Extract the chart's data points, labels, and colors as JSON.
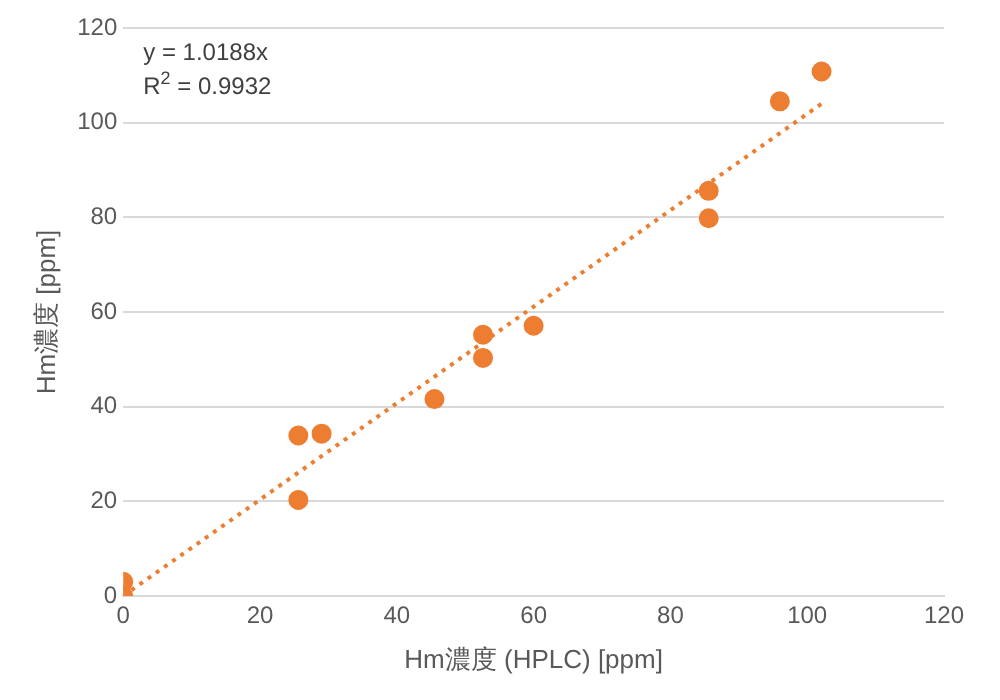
{
  "chart_data": {
    "type": "scatter",
    "xlabel": "Hm濃度 (HPLC) [ppm]",
    "ylabel": "Hm濃度 [ppm]",
    "annotations": [
      "y = 1.0188x",
      "R$^{2}$ = 0.9932"
    ],
    "x": [
      0,
      0,
      25.6,
      25.6,
      29,
      45.5,
      52.6,
      52.6,
      60,
      85.6,
      85.6,
      96,
      102.1
    ],
    "series": [
      {
        "type": "scatter",
        "color": "#ed7d31",
        "marker": "circle",
        "values": [
          0,
          3,
          20.3,
          33.9,
          34.3,
          41.6,
          50.3,
          55.2,
          57.1,
          85.6,
          79.8,
          104.5,
          110.8
        ]
      },
      {
        "type": "line",
        "color": "#ed7d31",
        "line_style": "dotted",
        "marker": "none",
        "x": [
          0,
          102.1
        ],
        "values": [
          0,
          104
        ]
      }
    ],
    "xlim": [
      0,
      120
    ],
    "xticks": [
      0,
      20,
      40,
      60,
      80,
      100,
      120
    ],
    "ylim": [
      0,
      120
    ],
    "yticks": [
      0,
      20,
      40,
      60,
      80,
      100,
      120
    ],
    "grid": "y",
    "legend": false
  }
}
